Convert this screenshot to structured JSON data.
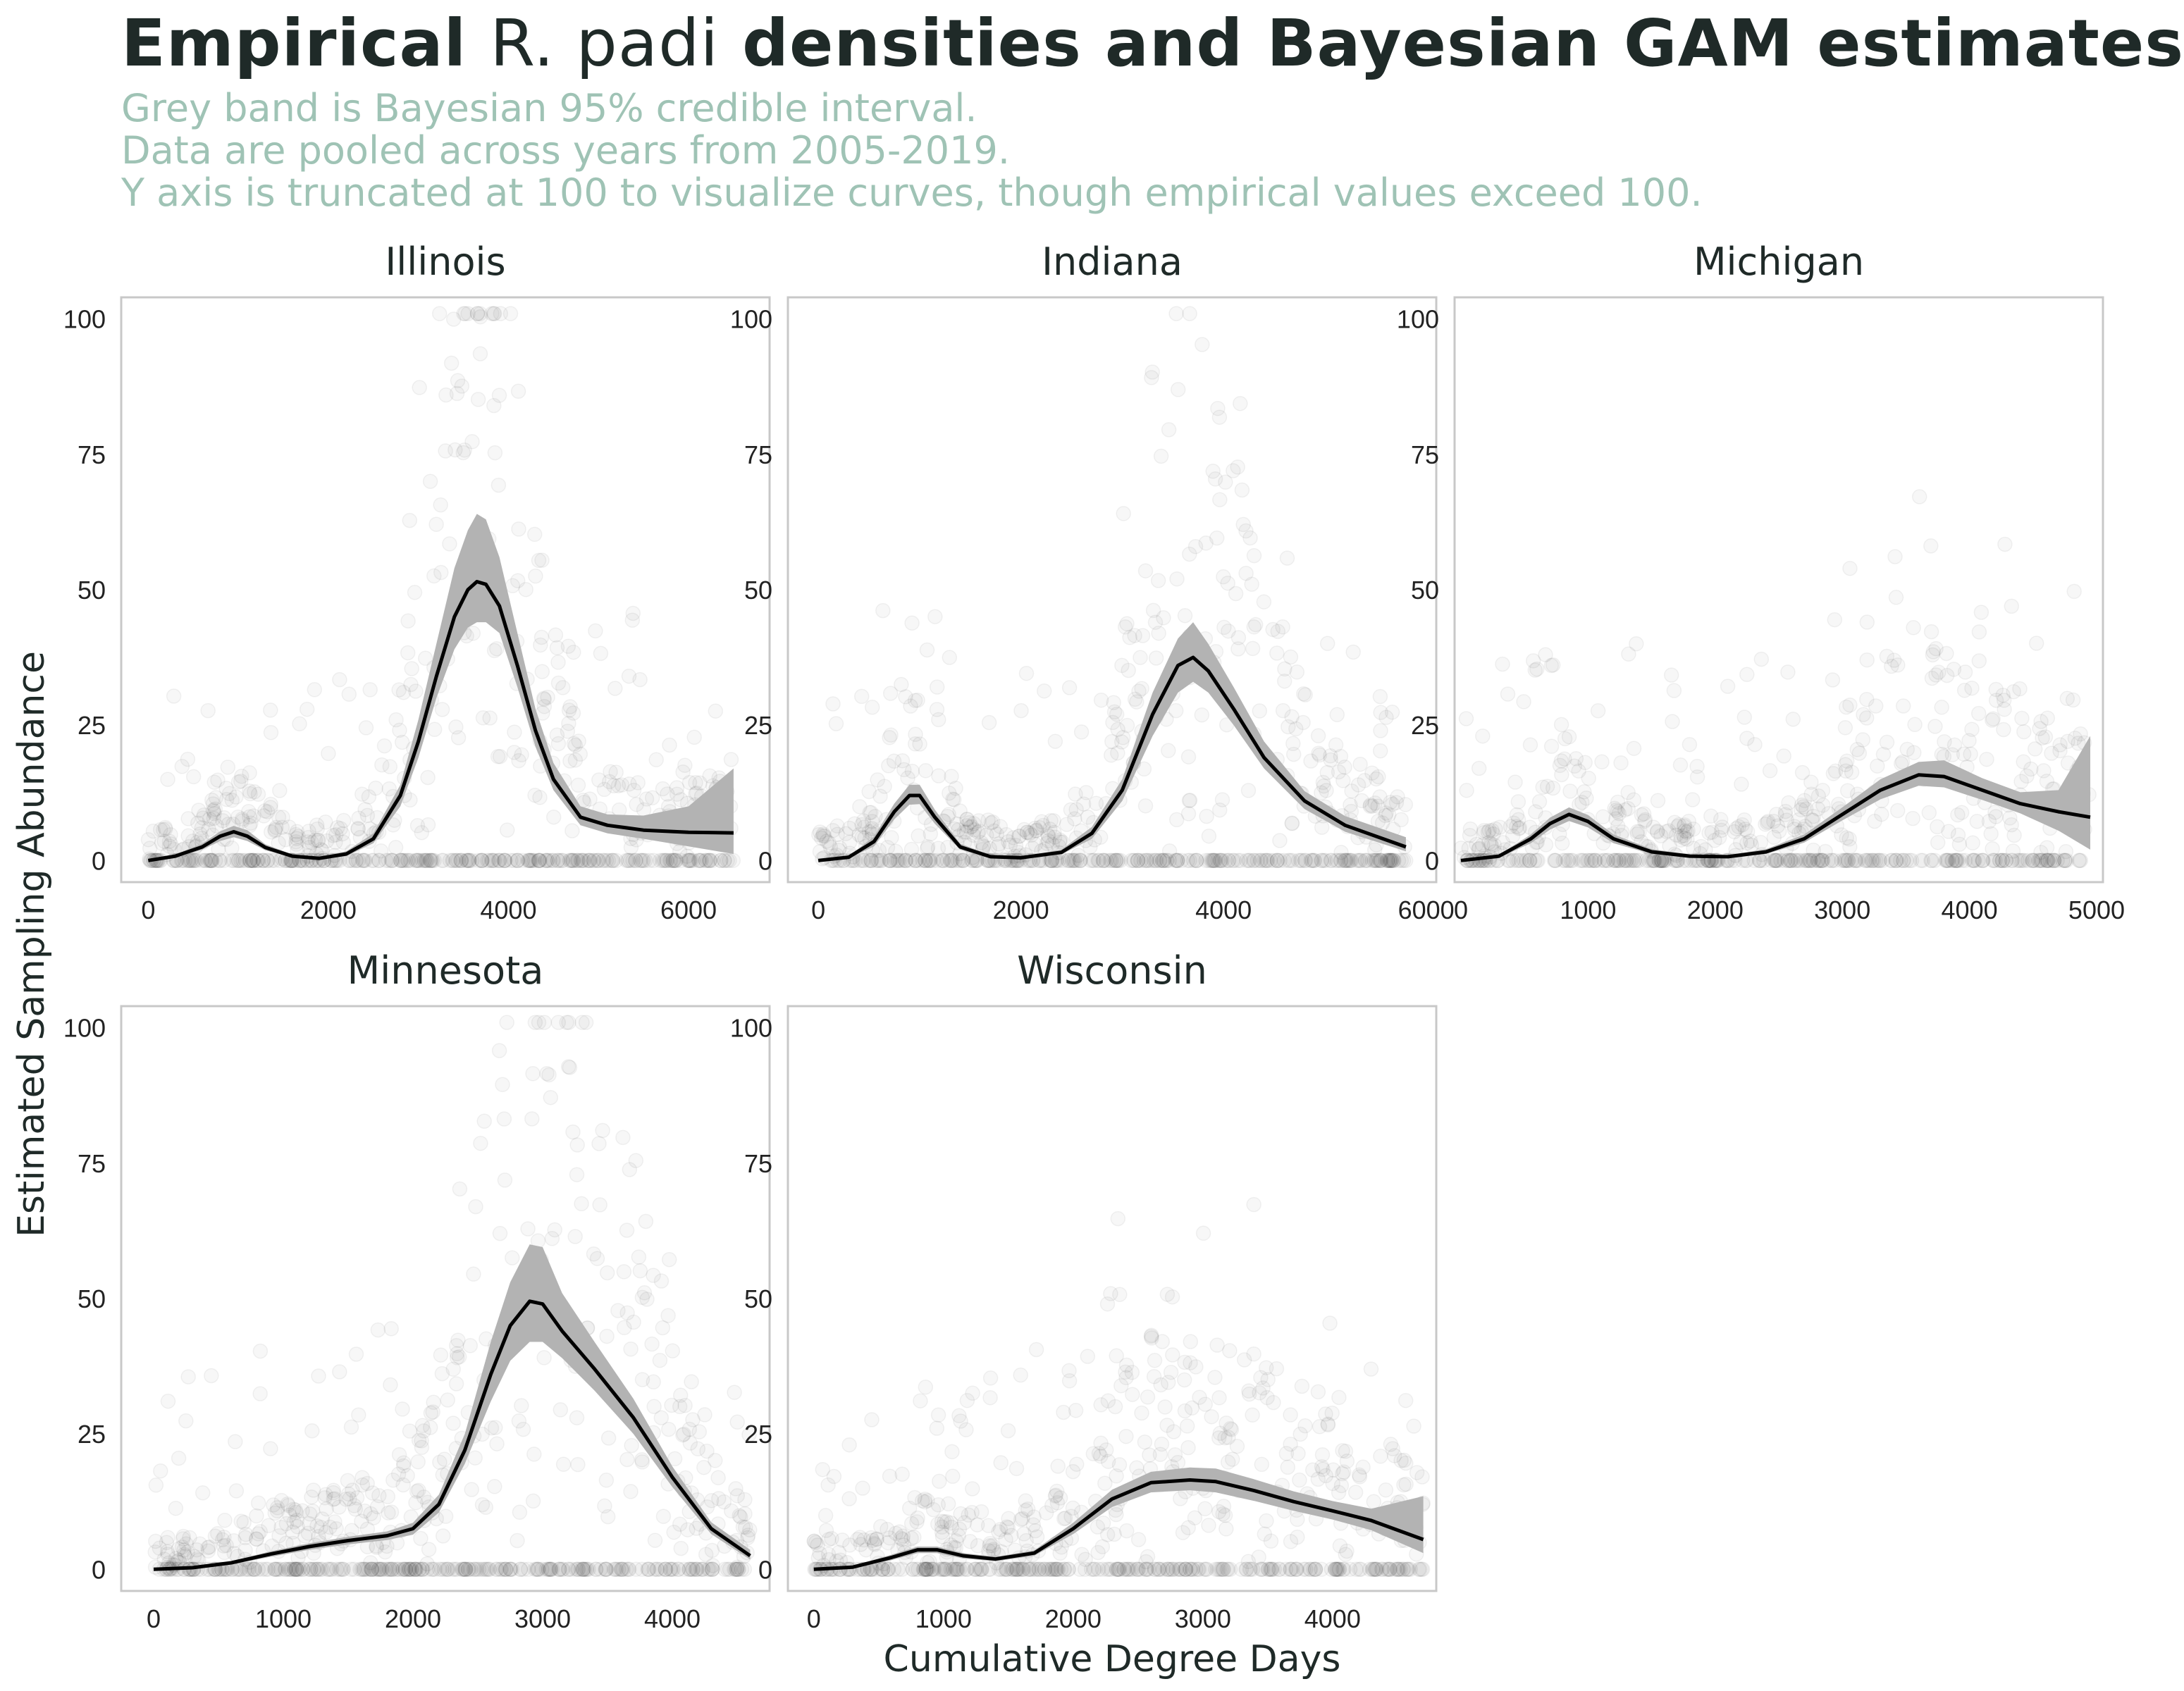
{
  "title": {
    "bold_1": "Empirical",
    "species": "R. padi",
    "bold_2": "densities and Bayesian GAM estimates"
  },
  "subtitle_lines": [
    "Grey band is Bayesian 95% credible interval.",
    "Data are pooled across years from 2005-2019.",
    "Y axis is truncated at 100 to visualize curves, though empirical values exceed 100."
  ],
  "colors": {
    "title": "#1f2a28",
    "subtitle": "#9fc3b5",
    "band": "#b3b3b3",
    "line": "#000000",
    "points": "#000000",
    "panel_border": "#c8c8c8"
  },
  "chart_data": [
    {
      "type": "line",
      "facet": "Illinois",
      "xlabel": "Cumulative Degree Days",
      "ylabel": "Estimated Sampling Abundance",
      "xlim": [
        -300,
        6900
      ],
      "ylim": [
        -4,
        104
      ],
      "x_ticks": [
        0,
        2000,
        4000,
        6000
      ],
      "y_ticks": [
        0,
        25,
        50,
        75,
        100
      ],
      "series": [
        {
          "x": [
            0,
            300,
            600,
            800,
            950,
            1100,
            1300,
            1600,
            1900,
            2200,
            2500,
            2800,
            3000,
            3200,
            3400,
            3550,
            3650,
            3750,
            3900,
            4100,
            4300,
            4500,
            4800,
            5100,
            5500,
            6000,
            6500
          ],
          "y": [
            0,
            0.8,
            2.5,
            4.5,
            5.3,
            4.5,
            2.4,
            0.8,
            0.4,
            1.2,
            4,
            12,
            22,
            34,
            45,
            50,
            51.5,
            51,
            47,
            36,
            24,
            15,
            8,
            6.5,
            5.6,
            5.2,
            5.1
          ],
          "lo": [
            0,
            0.5,
            2.0,
            3.6,
            4.3,
            3.6,
            1.9,
            0.5,
            0.2,
            0.8,
            3.2,
            10,
            19,
            30,
            39,
            43,
            44,
            44,
            42,
            32,
            21,
            13,
            6.5,
            5,
            4,
            2.6,
            1.2
          ],
          "hi": [
            0,
            1.1,
            3.1,
            5.4,
            6.4,
            5.6,
            3.0,
            1.1,
            0.7,
            1.7,
            5,
            14,
            26,
            40,
            54,
            61,
            64,
            63,
            56,
            42,
            28,
            18,
            10,
            8.5,
            8.3,
            10,
            17
          ]
        }
      ]
    },
    {
      "type": "line",
      "facet": "Indiana",
      "xlabel": "Cumulative Degree Days",
      "ylabel": "Estimated Sampling Abundance",
      "xlim": [
        -300,
        6100
      ],
      "ylim": [
        -4,
        104
      ],
      "x_ticks": [
        0,
        2000,
        4000,
        6000
      ],
      "y_ticks": [
        0,
        25,
        50,
        75,
        100
      ],
      "series": [
        {
          "x": [
            0,
            300,
            550,
            750,
            900,
            1000,
            1150,
            1400,
            1700,
            2000,
            2400,
            2700,
            3000,
            3300,
            3550,
            3700,
            3850,
            4100,
            4400,
            4800,
            5200,
            5800
          ],
          "y": [
            0,
            0.6,
            3.5,
            9,
            12,
            12,
            8,
            2.5,
            0.7,
            0.5,
            1.5,
            5,
            13,
            27,
            36,
            37.5,
            35,
            28,
            19,
            11,
            6.5,
            2.5
          ],
          "lo": [
            0,
            0.4,
            2.6,
            7.6,
            10.3,
            10.4,
            6.8,
            2.0,
            0.4,
            0.3,
            1.1,
            4.0,
            11,
            23,
            31,
            33,
            31,
            25,
            17,
            9.5,
            5.3,
            1.7
          ],
          "hi": [
            0,
            0.8,
            4.4,
            10.5,
            14,
            14,
            9.4,
            3.1,
            1.0,
            0.7,
            2.0,
            6.2,
            15,
            31,
            41,
            44,
            40,
            32,
            22,
            12.8,
            8.2,
            4.3
          ]
        }
      ]
    },
    {
      "type": "line",
      "facet": "Michigan",
      "xlabel": "Cumulative Degree Days",
      "ylabel": "Estimated Sampling Abundance",
      "xlim": [
        -50,
        5050
      ],
      "ylim": [
        -4,
        104
      ],
      "x_ticks": [
        0,
        1000,
        2000,
        3000,
        4000,
        5000
      ],
      "y_ticks": [
        0,
        25,
        50,
        75,
        100
      ],
      "series": [
        {
          "x": [
            0,
            300,
            550,
            700,
            850,
            1000,
            1200,
            1500,
            1800,
            2100,
            2400,
            2700,
            3000,
            3300,
            3600,
            3800,
            4100,
            4400,
            4700,
            4950
          ],
          "y": [
            0,
            0.8,
            4,
            6.8,
            8.5,
            7.2,
            4,
            1.6,
            0.8,
            0.7,
            1.6,
            4,
            8.5,
            13,
            15.8,
            15.5,
            13,
            10.5,
            9,
            8
          ],
          "lo": [
            0,
            0.5,
            3.2,
            5.7,
            7.3,
            6.1,
            3.2,
            1.2,
            0.5,
            0.5,
            1.2,
            3.3,
            7.4,
            11.3,
            13.8,
            13.5,
            11.2,
            8.7,
            5.5,
            2
          ],
          "hi": [
            0,
            1.1,
            4.8,
            7.9,
            9.8,
            8.4,
            4.8,
            2.1,
            1.1,
            1.0,
            2.1,
            4.8,
            9.8,
            15,
            18.2,
            18.5,
            15.2,
            12.6,
            13,
            23
          ]
        }
      ]
    },
    {
      "type": "line",
      "facet": "Minnesota",
      "xlabel": "Cumulative Degree Days",
      "ylabel": "Estimated Sampling Abundance",
      "xlim": [
        -250,
        4750
      ],
      "ylim": [
        -4,
        104
      ],
      "x_ticks": [
        0,
        1000,
        2000,
        3000,
        4000
      ],
      "y_ticks": [
        0,
        25,
        50,
        75,
        100
      ],
      "series": [
        {
          "x": [
            0,
            300,
            600,
            900,
            1200,
            1500,
            1800,
            2000,
            2200,
            2400,
            2600,
            2750,
            2900,
            3000,
            3150,
            3400,
            3700,
            4000,
            4300,
            4600
          ],
          "y": [
            0,
            0.3,
            1.2,
            2.8,
            4.2,
            5.3,
            6.2,
            7.5,
            12,
            22,
            36,
            45,
            49.5,
            49,
            44,
            37,
            28,
            17,
            7.5,
            2.5
          ],
          "lo": [
            0,
            0.2,
            0.9,
            2.3,
            3.6,
            4.6,
            5.4,
            6.4,
            10.5,
            19.5,
            31,
            38.5,
            42,
            42,
            39,
            33,
            25,
            15.2,
            6.5,
            1.8
          ],
          "hi": [
            0,
            0.4,
            1.5,
            3.3,
            4.8,
            6.0,
            7.0,
            8.6,
            13.8,
            25,
            42,
            53,
            60,
            59.5,
            51,
            42,
            31.5,
            19,
            8.7,
            3.6
          ]
        }
      ]
    },
    {
      "type": "line",
      "facet": "Wisconsin",
      "xlabel": "Cumulative Degree Days",
      "ylabel": "Estimated Sampling Abundance",
      "xlim": [
        -200,
        4800
      ],
      "ylim": [
        -4,
        104
      ],
      "x_ticks": [
        0,
        1000,
        2000,
        3000,
        4000
      ],
      "y_ticks": [
        0,
        25,
        50,
        75,
        100
      ],
      "series": [
        {
          "x": [
            0,
            300,
            600,
            800,
            950,
            1150,
            1400,
            1700,
            2000,
            2300,
            2600,
            2900,
            3100,
            3400,
            3700,
            4000,
            4300,
            4700
          ],
          "y": [
            0,
            0.4,
            2.2,
            3.6,
            3.6,
            2.5,
            1.9,
            3.0,
            7.5,
            13,
            16,
            16.5,
            16.2,
            14.5,
            12.5,
            10.8,
            9,
            5.5
          ],
          "lo": [
            0,
            0.2,
            1.7,
            3.0,
            3.0,
            2.0,
            1.5,
            2.5,
            6.5,
            11.5,
            14.2,
            14.6,
            14.2,
            12.6,
            10.8,
            9.2,
            7.2,
            3.0
          ],
          "hi": [
            0,
            0.6,
            2.7,
            4.2,
            4.2,
            3.0,
            2.3,
            3.5,
            8.6,
            14.7,
            18.0,
            18.8,
            18.6,
            16.6,
            14.4,
            12.6,
            11.2,
            13.5
          ]
        }
      ]
    }
  ]
}
